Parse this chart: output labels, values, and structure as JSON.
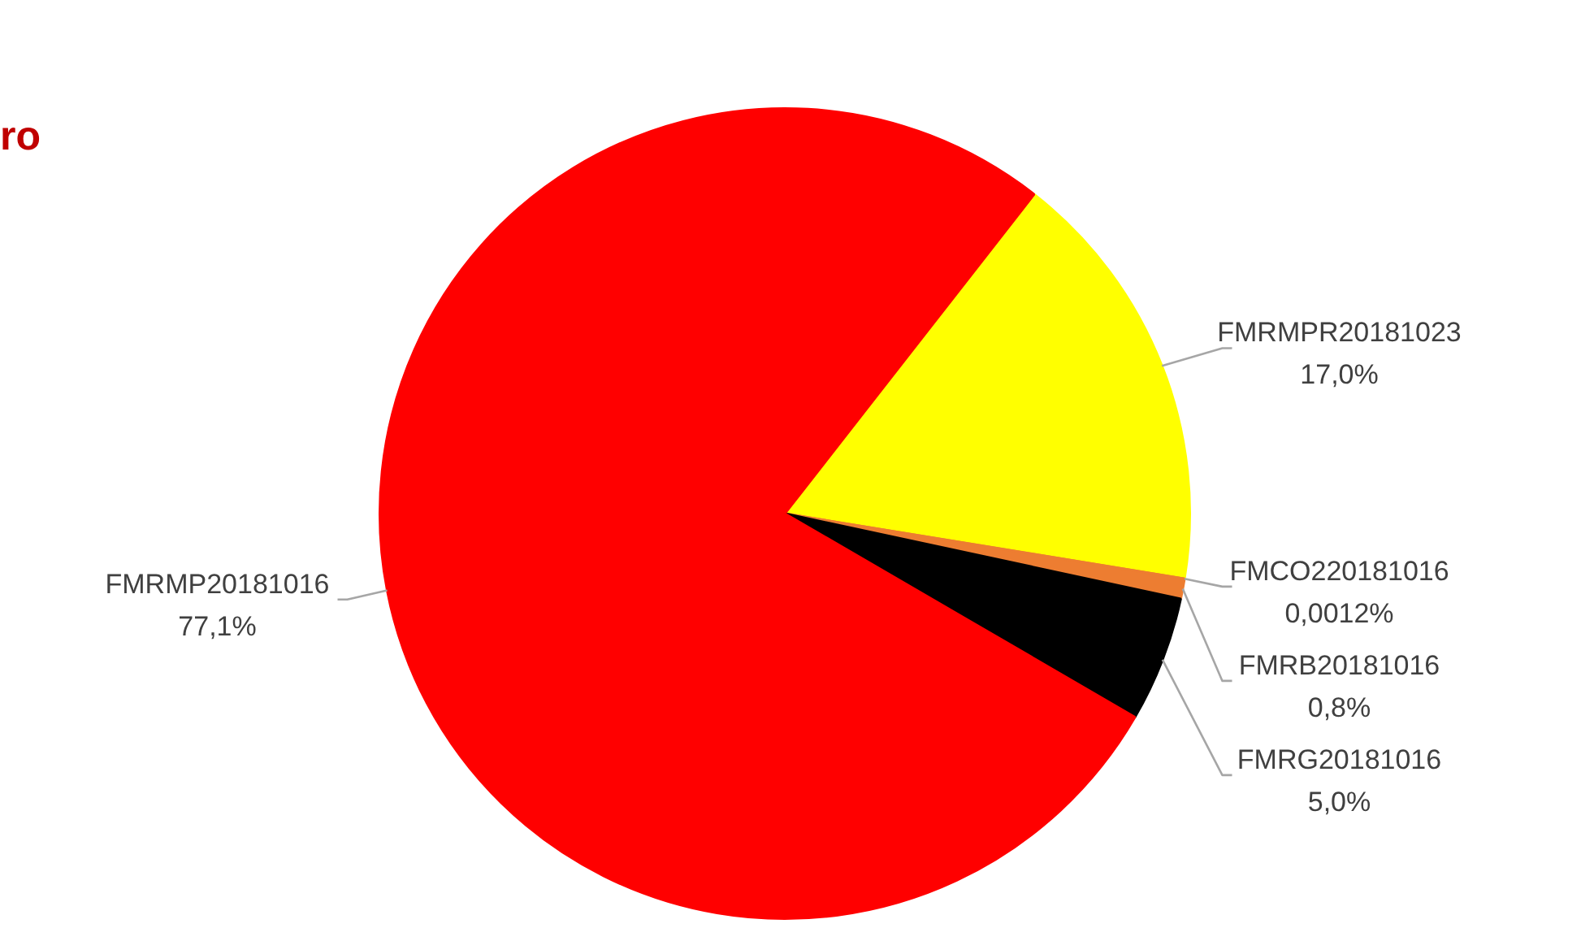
{
  "chart_data": {
    "type": "pie",
    "title": "ro",
    "categories": [
      "FMRMPR20181023",
      "FMCO220181016",
      "FMRB20181016",
      "FMRG20181016",
      "FMRMP20181016"
    ],
    "values": [
      17.0,
      0.0012,
      0.8,
      5.0,
      77.1
    ],
    "colors": [
      "#ffff00",
      "#ed7d31",
      "#ed7d31",
      "#000000",
      "#ff0000"
    ],
    "value_labels": [
      "17,0%",
      "0,0012%",
      "0,8%",
      "5,0%",
      "77,1%"
    ],
    "legend": false
  }
}
